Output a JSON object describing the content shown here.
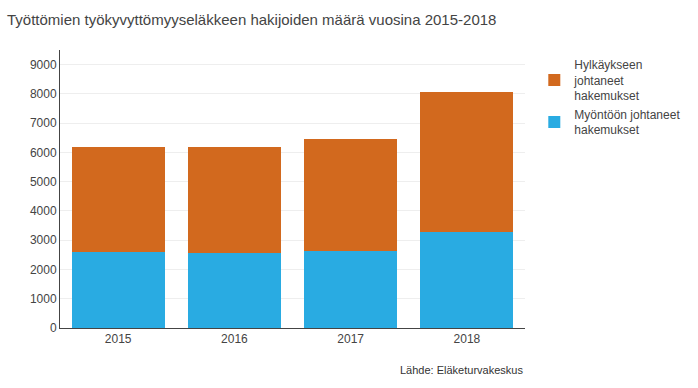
{
  "chart_data": {
    "type": "bar",
    "stacked": true,
    "title": "Työttömien työkyvyttömyyseläkkeen hakijoiden määrä vuosina 2015-2018",
    "categories": [
      "2015",
      "2016",
      "2017",
      "2018"
    ],
    "series": [
      {
        "name": "Myöntöön johtaneet\nhakemukset",
        "color": "#29ABE2",
        "values": [
          2600,
          2550,
          2620,
          3270
        ]
      },
      {
        "name": "Hylkäykseen\njohtaneet\nhakemukset",
        "color": "#D2691E",
        "values": [
          3600,
          3650,
          3850,
          4800
        ]
      }
    ],
    "ylim": [
      0,
      9500
    ],
    "yticks": [
      0,
      1000,
      2000,
      3000,
      4000,
      5000,
      6000,
      7000,
      8000,
      9000
    ],
    "grid": true,
    "legend": "right",
    "annotations": [
      "Lähde: Eläketurvakeskus"
    ]
  }
}
